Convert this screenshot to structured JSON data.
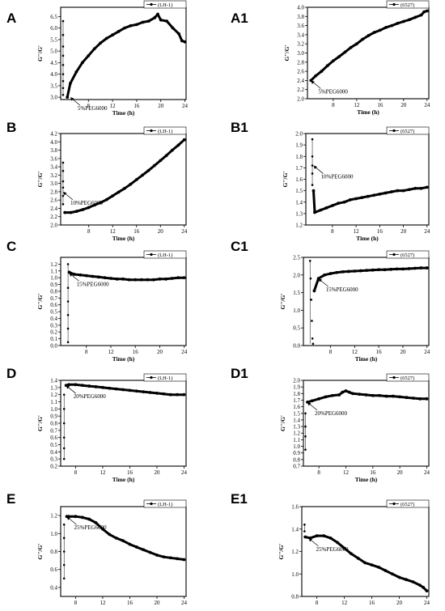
{
  "chart_data": [
    {
      "id": "A",
      "type": "line",
      "panel_label": "A",
      "legend": "(LH-1)",
      "xlabel": "Time (h)",
      "ylabel": "G''/G'",
      "xlim": [
        3.4,
        24.2
      ],
      "xticks": [
        8,
        12,
        16,
        20,
        24
      ],
      "ylim": [
        2.9,
        6.9
      ],
      "yticks": [
        3.0,
        3.5,
        4.0,
        4.5,
        5.0,
        5.5,
        6.0,
        6.5
      ],
      "ydec": 1,
      "annotation": {
        "text": "5%PEG6000",
        "x": 5.0,
        "y": 3.0
      },
      "spike": [
        [
          3.8,
          6.3
        ],
        [
          3.8,
          5.7
        ],
        [
          3.8,
          5.2
        ],
        [
          3.8,
          4.8
        ],
        [
          3.8,
          4.4
        ],
        [
          3.8,
          4.0
        ],
        [
          3.8,
          3.7
        ],
        [
          3.8,
          3.4
        ],
        [
          3.8,
          3.1
        ]
      ],
      "series": [
        {
          "x": [
            4.5,
            5,
            6,
            7,
            8,
            9,
            10,
            11,
            12,
            13,
            14,
            15,
            16,
            17,
            18,
            19,
            19.5,
            20,
            21,
            22,
            23,
            23.5,
            24
          ],
          "y": [
            3.0,
            3.6,
            4.1,
            4.5,
            4.8,
            5.1,
            5.35,
            5.55,
            5.7,
            5.85,
            6.0,
            6.1,
            6.15,
            6.25,
            6.3,
            6.45,
            6.6,
            6.35,
            6.3,
            6.0,
            5.75,
            5.45,
            5.4
          ]
        }
      ]
    },
    {
      "id": "A1",
      "type": "line",
      "panel_label": "A1",
      "legend": "(6527)",
      "xlabel": "Time (h)",
      "ylabel": "G''/G'",
      "xlim": [
        3.6,
        24.3
      ],
      "xticks": [
        8,
        12,
        16,
        20,
        24
      ],
      "ylim": [
        2.0,
        4.0
      ],
      "yticks": [
        2.0,
        2.2,
        2.4,
        2.6,
        2.8,
        3.0,
        3.2,
        3.4,
        3.6,
        3.8,
        4.0
      ],
      "ydec": 1,
      "annotation": {
        "text": "5%PEG6000",
        "x": 4.2,
        "y": 2.4
      },
      "spike": [],
      "series": [
        {
          "x": [
            4.2,
            5,
            6,
            7,
            8,
            9,
            10,
            11,
            12,
            13,
            14,
            15,
            16,
            17,
            18,
            19,
            20,
            21,
            22,
            23,
            23.5,
            24
          ],
          "y": [
            2.4,
            2.5,
            2.6,
            2.72,
            2.83,
            2.92,
            3.02,
            3.12,
            3.2,
            3.3,
            3.38,
            3.45,
            3.5,
            3.56,
            3.6,
            3.65,
            3.69,
            3.73,
            3.78,
            3.83,
            3.9,
            3.92
          ]
        }
      ]
    },
    {
      "id": "B",
      "type": "line",
      "panel_label": "B",
      "legend": "(LH-1)",
      "xlabel": "Time (h)",
      "ylabel": "G''/G'",
      "xlim": [
        3.3,
        24.3
      ],
      "xticks": [
        8,
        12,
        16,
        20,
        24
      ],
      "ylim": [
        2.0,
        4.2
      ],
      "yticks": [
        2.0,
        2.2,
        2.4,
        2.6,
        2.8,
        3.0,
        3.2,
        3.4,
        3.6,
        3.8,
        4.0,
        4.2
      ],
      "ydec": 1,
      "annotation": {
        "text": "10%PEG6000",
        "x": 3.7,
        "y": 2.8
      },
      "spike": [
        [
          3.7,
          3.5
        ],
        [
          3.7,
          3.3
        ],
        [
          3.7,
          3.05
        ],
        [
          3.7,
          2.9
        ],
        [
          3.7,
          2.7
        ],
        [
          3.7,
          2.5
        ]
      ],
      "series": [
        {
          "x": [
            4,
            5,
            6,
            7,
            8,
            9,
            10,
            11,
            12,
            13,
            14,
            15,
            16,
            17,
            18,
            19,
            20,
            21,
            22,
            23,
            24
          ],
          "y": [
            2.3,
            2.3,
            2.33,
            2.37,
            2.42,
            2.48,
            2.54,
            2.61,
            2.7,
            2.79,
            2.88,
            2.98,
            3.09,
            3.2,
            3.31,
            3.43,
            3.55,
            3.67,
            3.8,
            3.92,
            4.05
          ]
        }
      ]
    },
    {
      "id": "B1",
      "type": "line",
      "panel_label": "B1",
      "legend": "(6527)",
      "xlabel": "Time (h)",
      "ylabel": "G''/G'",
      "xlim": [
        3.5,
        24.3
      ],
      "xticks": [
        8,
        12,
        16,
        20,
        24
      ],
      "ylim": [
        1.2,
        2.0
      ],
      "yticks": [
        1.2,
        1.3,
        1.4,
        1.5,
        1.6,
        1.7,
        1.8,
        1.9,
        2.0
      ],
      "ydec": 1,
      "annotation": {
        "text": "10%PEG6000",
        "x": 4.8,
        "y": 1.72
      },
      "spike": [
        [
          4.6,
          1.95
        ],
        [
          4.6,
          1.8
        ],
        [
          4.6,
          1.72
        ],
        [
          4.6,
          1.65
        ],
        [
          4.6,
          1.55
        ]
      ],
      "series": [
        {
          "x": [
            4.8,
            5,
            6,
            7,
            8,
            9,
            10,
            11,
            12,
            13,
            14,
            15,
            16,
            17,
            18,
            19,
            20,
            21,
            22,
            23,
            24
          ],
          "y": [
            1.5,
            1.31,
            1.33,
            1.35,
            1.37,
            1.39,
            1.4,
            1.42,
            1.43,
            1.44,
            1.45,
            1.46,
            1.47,
            1.48,
            1.49,
            1.5,
            1.5,
            1.51,
            1.52,
            1.52,
            1.53
          ]
        }
      ]
    },
    {
      "id": "C",
      "type": "line",
      "panel_label": "C",
      "legend": "(LH-1)",
      "xlabel": "Time (h)",
      "ylabel": "G''/G'",
      "xlim": [
        3.8,
        24.3
      ],
      "xticks": [
        8,
        12,
        16,
        20,
        24
      ],
      "ylim": [
        0.0,
        1.3
      ],
      "yticks": [
        0.0,
        0.1,
        0.2,
        0.3,
        0.4,
        0.5,
        0.6,
        0.7,
        0.8,
        0.9,
        1.0,
        1.1,
        1.2
      ],
      "ydec": 1,
      "annotation": {
        "text": "15%PEG6000",
        "x": 5.2,
        "y": 1.07
      },
      "spike": [
        [
          5.0,
          1.2
        ],
        [
          5.0,
          0.85
        ],
        [
          5.0,
          0.65
        ],
        [
          5.0,
          0.45
        ],
        [
          5.0,
          0.25
        ],
        [
          5.0,
          0.05
        ]
      ],
      "series": [
        {
          "x": [
            5.2,
            6,
            7,
            8,
            9,
            10,
            11,
            12,
            13,
            14,
            15,
            16,
            17,
            18,
            19,
            20,
            21,
            22,
            23,
            24
          ],
          "y": [
            1.08,
            1.05,
            1.04,
            1.03,
            1.02,
            1.01,
            1.0,
            0.99,
            0.98,
            0.98,
            0.97,
            0.97,
            0.97,
            0.97,
            0.97,
            0.98,
            0.98,
            0.99,
            1.0,
            1.0
          ]
        }
      ]
    },
    {
      "id": "C1",
      "type": "line",
      "panel_label": "C1",
      "legend": "(6527)",
      "xlabel": "Time (h)",
      "ylabel": "G''/G'",
      "xlim": [
        3.5,
        24.3
      ],
      "xticks": [
        8,
        12,
        16,
        20,
        24
      ],
      "ylim": [
        0.0,
        2.5
      ],
      "yticks": [
        0.0,
        0.5,
        1.0,
        1.5,
        2.0,
        2.5
      ],
      "ydec": 1,
      "annotation": {
        "text": "15%PEG6000",
        "x": 6.0,
        "y": 1.9
      },
      "spike": [
        [
          4.6,
          2.4
        ],
        [
          4.7,
          1.9
        ],
        [
          4.8,
          1.3
        ],
        [
          4.9,
          0.7
        ],
        [
          5.0,
          0.2
        ],
        [
          5.1,
          0.05
        ]
      ],
      "series": [
        {
          "x": [
            5.3,
            6,
            7,
            8,
            9,
            10,
            11,
            12,
            13,
            14,
            15,
            16,
            17,
            18,
            19,
            20,
            21,
            22,
            23,
            24
          ],
          "y": [
            1.55,
            1.9,
            2.0,
            2.04,
            2.07,
            2.09,
            2.1,
            2.11,
            2.12,
            2.13,
            2.14,
            2.15,
            2.15,
            2.16,
            2.17,
            2.17,
            2.18,
            2.19,
            2.2,
            2.2
          ]
        }
      ]
    },
    {
      "id": "D",
      "type": "line",
      "panel_label": "D",
      "legend": "(LH-1)",
      "xlabel": "Time (h)",
      "ylabel": "G''/G'",
      "xlim": [
        5.8,
        24.3
      ],
      "xticks": [
        8,
        12,
        16,
        20,
        24
      ],
      "ylim": [
        0.2,
        1.4
      ],
      "yticks": [
        0.2,
        0.3,
        0.4,
        0.5,
        0.6,
        0.7,
        0.8,
        0.9,
        1.0,
        1.1,
        1.2,
        1.3,
        1.4
      ],
      "ydec": 1,
      "annotation": {
        "text": "20%PEG6000",
        "x": 6.6,
        "y": 1.33
      },
      "spike": [
        [
          6.3,
          1.2
        ],
        [
          6.3,
          1.0
        ],
        [
          6.3,
          0.8
        ],
        [
          6.3,
          0.6
        ],
        [
          6.3,
          0.45
        ],
        [
          6.3,
          0.3
        ]
      ],
      "series": [
        {
          "x": [
            6.6,
            7,
            8,
            9,
            10,
            11,
            12,
            13,
            14,
            15,
            16,
            17,
            18,
            19,
            20,
            21,
            22,
            23,
            24
          ],
          "y": [
            1.33,
            1.34,
            1.34,
            1.33,
            1.32,
            1.31,
            1.3,
            1.29,
            1.28,
            1.27,
            1.26,
            1.25,
            1.24,
            1.23,
            1.22,
            1.21,
            1.2,
            1.2,
            1.2
          ]
        }
      ]
    },
    {
      "id": "D1",
      "type": "line",
      "panel_label": "D1",
      "legend": "(6527)",
      "xlabel": "Time (h)",
      "ylabel": "G''/G'",
      "xlim": [
        5.7,
        24.3
      ],
      "xticks": [
        8,
        12,
        16,
        20,
        24
      ],
      "ylim": [
        0.7,
        2.0
      ],
      "yticks": [
        0.7,
        0.8,
        0.9,
        1.0,
        1.1,
        1.2,
        1.3,
        1.4,
        1.5,
        1.6,
        1.7,
        1.8,
        1.9,
        2.0
      ],
      "ydec": 1,
      "annotation": {
        "text": "20%PEG6000",
        "x": 6.3,
        "y": 1.67
      },
      "spike": [
        [
          6.0,
          1.5
        ],
        [
          6.0,
          1.3
        ],
        [
          6.0,
          1.15
        ],
        [
          6.0,
          0.95
        ]
      ],
      "series": [
        {
          "x": [
            6.3,
            7,
            8,
            9,
            10,
            11,
            11.5,
            12,
            12.5,
            13,
            14,
            15,
            16,
            17,
            18,
            19,
            20,
            21,
            22,
            23,
            24
          ],
          "y": [
            1.67,
            1.69,
            1.72,
            1.75,
            1.77,
            1.78,
            1.82,
            1.84,
            1.82,
            1.8,
            1.79,
            1.78,
            1.77,
            1.77,
            1.76,
            1.76,
            1.75,
            1.74,
            1.73,
            1.72,
            1.72
          ]
        }
      ]
    },
    {
      "id": "E",
      "type": "line",
      "panel_label": "E",
      "legend": "(LH-1)",
      "xlabel": "Time (h)",
      "ylabel": "G''/G'",
      "xlim": [
        5.8,
        24.3
      ],
      "xticks": [
        8,
        12,
        16,
        20,
        24
      ],
      "ylim": [
        0.3,
        1.3
      ],
      "yticks": [
        0.4,
        0.6,
        0.8,
        1.0,
        1.2
      ],
      "ydec": 1,
      "annotation": {
        "text": "25%PEG6000",
        "x": 6.7,
        "y": 1.19
      },
      "spike": [
        [
          6.3,
          1.1
        ],
        [
          6.3,
          0.95
        ],
        [
          6.3,
          0.8
        ],
        [
          6.3,
          0.65
        ],
        [
          6.3,
          0.5
        ]
      ],
      "series": [
        {
          "x": [
            6.7,
            7,
            8,
            9,
            10,
            11,
            12,
            13,
            14,
            15,
            16,
            17,
            18,
            19,
            20,
            21,
            22,
            23,
            24
          ],
          "y": [
            1.19,
            1.19,
            1.19,
            1.18,
            1.16,
            1.12,
            1.05,
            0.99,
            0.95,
            0.92,
            0.88,
            0.85,
            0.82,
            0.79,
            0.76,
            0.74,
            0.73,
            0.72,
            0.71
          ]
        }
      ]
    },
    {
      "id": "E1",
      "type": "line",
      "panel_label": "E1",
      "legend": "(6527)",
      "xlabel": "Time (h)",
      "ylabel": "G''/G'",
      "xlim": [
        5.8,
        24.3
      ],
      "xticks": [
        8,
        12,
        16,
        20,
        24
      ],
      "ylim": [
        0.8,
        1.6
      ],
      "yticks": [
        0.8,
        1.0,
        1.2,
        1.4,
        1.6
      ],
      "ydec": 1,
      "annotation": {
        "text": "25%PEG6000",
        "x": 6.8,
        "y": 1.32
      },
      "spike": [
        [
          6.2,
          1.44
        ],
        [
          6.2,
          1.38
        ]
      ],
      "series": [
        {
          "x": [
            6.3,
            7,
            8,
            9,
            10,
            11,
            12,
            13,
            14,
            15,
            16,
            17,
            18,
            19,
            20,
            21,
            22,
            23,
            23.5,
            24
          ],
          "y": [
            1.33,
            1.32,
            1.34,
            1.34,
            1.32,
            1.28,
            1.23,
            1.18,
            1.14,
            1.1,
            1.08,
            1.06,
            1.03,
            1.0,
            0.97,
            0.95,
            0.93,
            0.9,
            0.88,
            0.85
          ]
        }
      ]
    }
  ]
}
